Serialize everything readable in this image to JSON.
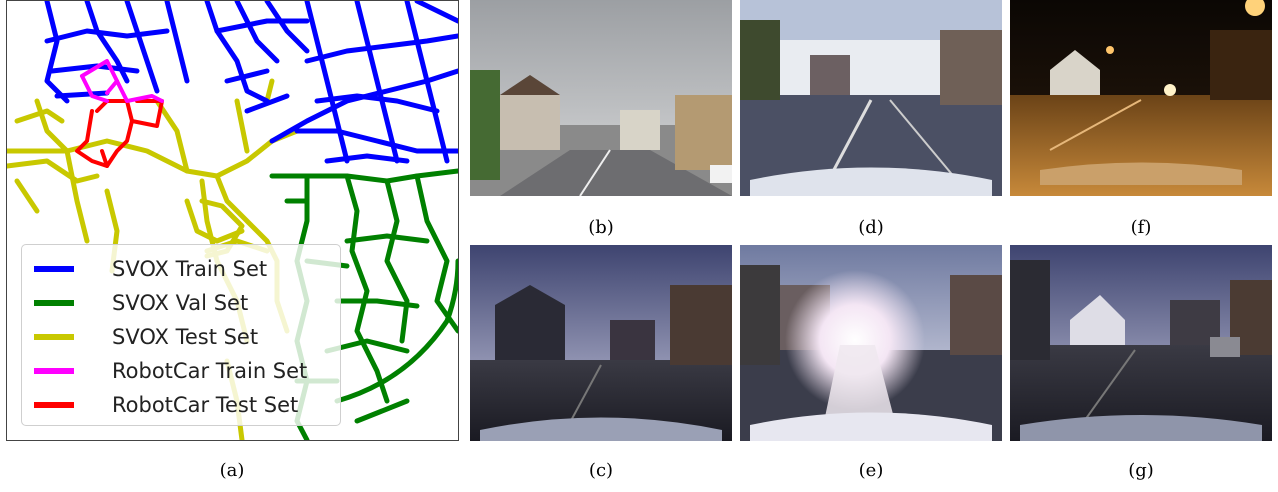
{
  "figure": {
    "panels": [
      {
        "id": "a",
        "caption": "(a)"
      },
      {
        "id": "b",
        "caption": "(b)"
      },
      {
        "id": "c",
        "caption": "(c)"
      },
      {
        "id": "d",
        "caption": "(d)"
      },
      {
        "id": "e",
        "caption": "(e)"
      },
      {
        "id": "f",
        "caption": "(f)"
      },
      {
        "id": "g",
        "caption": "(g)"
      }
    ]
  },
  "map": {
    "legend": [
      {
        "label": "SVOX Train Set",
        "color": "#0000ff"
      },
      {
        "label": "SVOX Val Set",
        "color": "#008000"
      },
      {
        "label": "SVOX Test Set",
        "color": "#c8c800"
      },
      {
        "label": "RobotCar Train Set",
        "color": "#ff00ff"
      },
      {
        "label": "RobotCar Test Set",
        "color": "#ff0000"
      }
    ]
  }
}
